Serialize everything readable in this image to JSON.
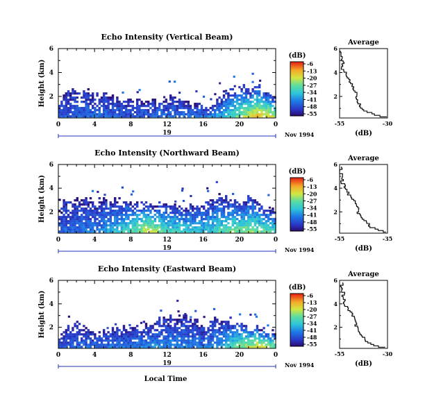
{
  "chart_data": [
    {
      "type": "heatmap",
      "title": "Echo Intensity (Vertical Beam)",
      "ylabel": "Height (km)",
      "xlabel": "",
      "x_ticks": [
        "0",
        "4",
        "8",
        "12",
        "16",
        "20",
        "0"
      ],
      "y_ticks": [
        "2",
        "4",
        "6"
      ],
      "xlim": [
        0,
        24
      ],
      "ylim": [
        0.2,
        6.0
      ],
      "date_day": "19",
      "date_label": "Nov 1994",
      "colorbar_unit": "(dB)",
      "colorbar_ticks": [
        "-6",
        "-13",
        "-20",
        "-27",
        "-34",
        "-41",
        "-48",
        "-55"
      ],
      "colorbar_range": [
        -55,
        -6
      ],
      "cloud_top_profile": [
        {
          "t": 0,
          "top": 1.4
        },
        {
          "t": 1,
          "top": 2.6
        },
        {
          "t": 2,
          "top": 2.3
        },
        {
          "t": 3,
          "top": 2.5
        },
        {
          "t": 4,
          "top": 2.0
        },
        {
          "t": 5,
          "top": 2.2
        },
        {
          "t": 6,
          "top": 1.9
        },
        {
          "t": 7,
          "top": 1.8
        },
        {
          "t": 8,
          "top": 1.7
        },
        {
          "t": 9,
          "top": 1.6
        },
        {
          "t": 10,
          "top": 1.6
        },
        {
          "t": 11,
          "top": 1.7
        },
        {
          "t": 12,
          "top": 1.8
        },
        {
          "t": 13,
          "top": 1.8
        },
        {
          "t": 14,
          "top": 1.5
        },
        {
          "t": 15,
          "top": 1.2
        },
        {
          "t": 16,
          "top": 1.0
        },
        {
          "t": 17,
          "top": 1.3
        },
        {
          "t": 18,
          "top": 2.0
        },
        {
          "t": 19,
          "top": 2.6
        },
        {
          "t": 20,
          "top": 2.7
        },
        {
          "t": 21,
          "top": 2.6
        },
        {
          "t": 22,
          "top": 2.9
        },
        {
          "t": 23,
          "top": 2.3
        },
        {
          "t": 24,
          "top": 2.0
        }
      ],
      "intensity_peak_near_ground": [
        {
          "t": 0,
          "db": -45
        },
        {
          "t": 4,
          "db": -44
        },
        {
          "t": 8,
          "db": -45
        },
        {
          "t": 12,
          "db": -43
        },
        {
          "t": 16,
          "db": -42
        },
        {
          "t": 18,
          "db": -36
        },
        {
          "t": 20,
          "db": -24
        },
        {
          "t": 22,
          "db": -16
        },
        {
          "t": 24,
          "db": -22
        }
      ],
      "average": {
        "title": "Average",
        "xlabel": "(dB)",
        "x_ticks": [
          "-55",
          "-30"
        ],
        "xlim": [
          -55,
          -30
        ],
        "y_ticks": [
          "2",
          "4",
          "6"
        ],
        "ylim": [
          0.2,
          6.0
        ],
        "profile": [
          {
            "h": 0.3,
            "db": -30
          },
          {
            "h": 0.5,
            "db": -36
          },
          {
            "h": 0.8,
            "db": -41
          },
          {
            "h": 1.2,
            "db": -44
          },
          {
            "h": 1.6,
            "db": -45
          },
          {
            "h": 2.0,
            "db": -46
          },
          {
            "h": 2.5,
            "db": -47
          },
          {
            "h": 3.0,
            "db": -48
          },
          {
            "h": 3.5,
            "db": -50
          },
          {
            "h": 4.0,
            "db": -52
          },
          {
            "h": 4.5,
            "db": -54
          },
          {
            "h": 5.0,
            "db": -53
          },
          {
            "h": 5.5,
            "db": -55
          },
          {
            "h": 5.9,
            "db": -54
          }
        ]
      }
    },
    {
      "type": "heatmap",
      "title": "Echo Intensity (Northward Beam)",
      "ylabel": "Height (km)",
      "xlabel": "",
      "x_ticks": [
        "0",
        "4",
        "8",
        "12",
        "16",
        "20",
        "0"
      ],
      "y_ticks": [
        "2",
        "4",
        "6"
      ],
      "xlim": [
        0,
        24
      ],
      "ylim": [
        0.2,
        6.0
      ],
      "date_day": "19",
      "date_label": "Nov 1994",
      "colorbar_unit": "(dB)",
      "colorbar_ticks": [
        "-6",
        "-13",
        "-20",
        "-27",
        "-34",
        "-41",
        "-48",
        "-55"
      ],
      "colorbar_range": [
        -55,
        -6
      ],
      "cloud_top_profile": [
        {
          "t": 0,
          "top": 2.4
        },
        {
          "t": 1,
          "top": 3.0
        },
        {
          "t": 2,
          "top": 3.2
        },
        {
          "t": 3,
          "top": 3.0
        },
        {
          "t": 4,
          "top": 2.9
        },
        {
          "t": 5,
          "top": 3.1
        },
        {
          "t": 6,
          "top": 2.9
        },
        {
          "t": 7,
          "top": 3.0
        },
        {
          "t": 8,
          "top": 2.7
        },
        {
          "t": 9,
          "top": 2.8
        },
        {
          "t": 10,
          "top": 2.7
        },
        {
          "t": 11,
          "top": 2.6
        },
        {
          "t": 12,
          "top": 2.5
        },
        {
          "t": 13,
          "top": 2.5
        },
        {
          "t": 14,
          "top": 2.5
        },
        {
          "t": 15,
          "top": 2.6
        },
        {
          "t": 16,
          "top": 2.7
        },
        {
          "t": 17,
          "top": 3.0
        },
        {
          "t": 18,
          "top": 3.3
        },
        {
          "t": 19,
          "top": 3.0
        },
        {
          "t": 20,
          "top": 2.6
        },
        {
          "t": 21,
          "top": 3.4
        },
        {
          "t": 22,
          "top": 2.8
        },
        {
          "t": 23,
          "top": 2.2
        },
        {
          "t": 24,
          "top": 2.0
        }
      ],
      "intensity_peak_near_ground": [
        {
          "t": 0,
          "db": -44
        },
        {
          "t": 4,
          "db": -42
        },
        {
          "t": 8,
          "db": -28
        },
        {
          "t": 10,
          "db": -18
        },
        {
          "t": 12,
          "db": -30
        },
        {
          "t": 16,
          "db": -34
        },
        {
          "t": 19,
          "db": -26
        },
        {
          "t": 21,
          "db": -24
        },
        {
          "t": 24,
          "db": -30
        }
      ],
      "average": {
        "title": "Average",
        "xlabel": "(dB)",
        "x_ticks": [
          "-55",
          "-35"
        ],
        "xlim": [
          -55,
          -35
        ],
        "y_ticks": [
          "2",
          "4",
          "6"
        ],
        "ylim": [
          0.2,
          6.0
        ],
        "profile": [
          {
            "h": 0.3,
            "db": -35
          },
          {
            "h": 0.5,
            "db": -38
          },
          {
            "h": 0.8,
            "db": -42
          },
          {
            "h": 1.2,
            "db": -44
          },
          {
            "h": 1.6,
            "db": -46
          },
          {
            "h": 2.0,
            "db": -47
          },
          {
            "h": 2.5,
            "db": -48
          },
          {
            "h": 3.0,
            "db": -49
          },
          {
            "h": 3.5,
            "db": -51
          },
          {
            "h": 4.0,
            "db": -52
          },
          {
            "h": 4.5,
            "db": -54
          },
          {
            "h": 5.0,
            "db": -54
          },
          {
            "h": 5.5,
            "db": -55
          },
          {
            "h": 5.9,
            "db": -54
          }
        ]
      }
    },
    {
      "type": "heatmap",
      "title": "Echo Intensity (Eastward Beam)",
      "ylabel": "Height (km)",
      "xlabel": "Local Time",
      "x_ticks": [
        "0",
        "4",
        "8",
        "12",
        "16",
        "20",
        "0"
      ],
      "y_ticks": [
        "2",
        "4",
        "6"
      ],
      "xlim": [
        0,
        24
      ],
      "ylim": [
        0.2,
        6.0
      ],
      "date_day": "19",
      "date_label": "Nov 1994",
      "colorbar_unit": "(dB)",
      "colorbar_ticks": [
        "-6",
        "-13",
        "-20",
        "-27",
        "-34",
        "-41",
        "-48",
        "-55"
      ],
      "colorbar_range": [
        -55,
        -6
      ],
      "cloud_top_profile": [
        {
          "t": 0,
          "top": 1.4
        },
        {
          "t": 1,
          "top": 2.0
        },
        {
          "t": 2,
          "top": 2.2
        },
        {
          "t": 3,
          "top": 1.9
        },
        {
          "t": 4,
          "top": 1.6
        },
        {
          "t": 5,
          "top": 1.6
        },
        {
          "t": 6,
          "top": 1.7
        },
        {
          "t": 7,
          "top": 1.8
        },
        {
          "t": 8,
          "top": 1.8
        },
        {
          "t": 9,
          "top": 2.2
        },
        {
          "t": 10,
          "top": 2.4
        },
        {
          "t": 11,
          "top": 2.7
        },
        {
          "t": 12,
          "top": 2.8
        },
        {
          "t": 13,
          "top": 2.8
        },
        {
          "t": 14,
          "top": 2.8
        },
        {
          "t": 15,
          "top": 2.7
        },
        {
          "t": 16,
          "top": 2.0
        },
        {
          "t": 17,
          "top": 2.8
        },
        {
          "t": 18,
          "top": 2.6
        },
        {
          "t": 19,
          "top": 2.6
        },
        {
          "t": 20,
          "top": 2.4
        },
        {
          "t": 21,
          "top": 2.2
        },
        {
          "t": 22,
          "top": 2.0
        },
        {
          "t": 23,
          "top": 1.6
        },
        {
          "t": 24,
          "top": 1.4
        }
      ],
      "intensity_peak_near_ground": [
        {
          "t": 0,
          "db": -45
        },
        {
          "t": 4,
          "db": -44
        },
        {
          "t": 8,
          "db": -42
        },
        {
          "t": 12,
          "db": -40
        },
        {
          "t": 16,
          "db": -42
        },
        {
          "t": 18,
          "db": -36
        },
        {
          "t": 20,
          "db": -24
        },
        {
          "t": 22,
          "db": -18
        },
        {
          "t": 24,
          "db": -26
        }
      ],
      "average": {
        "title": "Average",
        "xlabel": "(dB)",
        "x_ticks": [
          "-55",
          "-30"
        ],
        "xlim": [
          -55,
          -30
        ],
        "y_ticks": [
          "2",
          "4",
          "6"
        ],
        "ylim": [
          0.2,
          6.0
        ],
        "profile": [
          {
            "h": 0.3,
            "db": -31
          },
          {
            "h": 0.5,
            "db": -36
          },
          {
            "h": 0.8,
            "db": -40
          },
          {
            "h": 1.2,
            "db": -43
          },
          {
            "h": 1.6,
            "db": -45
          },
          {
            "h": 2.0,
            "db": -46
          },
          {
            "h": 2.5,
            "db": -47
          },
          {
            "h": 3.0,
            "db": -48
          },
          {
            "h": 3.5,
            "db": -50
          },
          {
            "h": 4.0,
            "db": -52
          },
          {
            "h": 4.5,
            "db": -53
          },
          {
            "h": 5.0,
            "db": -53
          },
          {
            "h": 5.5,
            "db": -54
          },
          {
            "h": 5.9,
            "db": -53
          }
        ]
      }
    }
  ]
}
